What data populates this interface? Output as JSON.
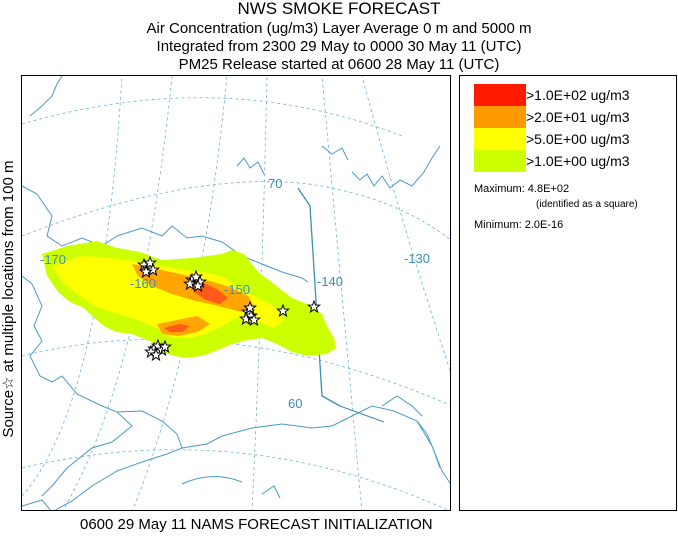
{
  "title": {
    "line1": "NWS SMOKE FORECAST",
    "line2": "Air Concentration (ug/m3) Layer Average    0 m and  5000 m",
    "line3": "Integrated from 2300 29 May to 0000 30 May 11 (UTC)",
    "line4": "PM25 Release started at 0600 28 May 11 (UTC)"
  },
  "side_label": "Source☆ at multiple locations     from   100 m",
  "map": {
    "grid_labels": {
      "lon_170": "-170",
      "lon_160": "-160",
      "lon_150": "-150",
      "lon_140": "-140",
      "lon_130": "-130",
      "lat_70": "70",
      "lat_60": "60"
    },
    "colors": {
      "coast": "#4a9bc4",
      "grid": "#4a9bc4",
      "border": "#3a8fb5",
      "source_star": "#000000"
    }
  },
  "legend": {
    "items": [
      {
        "label": ">1.0E+02 ug/m3",
        "color": "#ff1a00"
      },
      {
        "label": ">2.0E+01 ug/m3",
        "color": "#ff9a00"
      },
      {
        "label": ">5.0E+00 ug/m3",
        "color": "#ffff00"
      },
      {
        "label": ">1.0E+00 ug/m3",
        "color": "#ccff00"
      }
    ],
    "maximum": "Maximum: 4.8E+02",
    "maximum_note": "(identified as a square)",
    "minimum": "Minimum: 2.0E-16"
  },
  "bottom_caption": "0600 29 May 11 NAMS FORECAST INITIALIZATION"
}
